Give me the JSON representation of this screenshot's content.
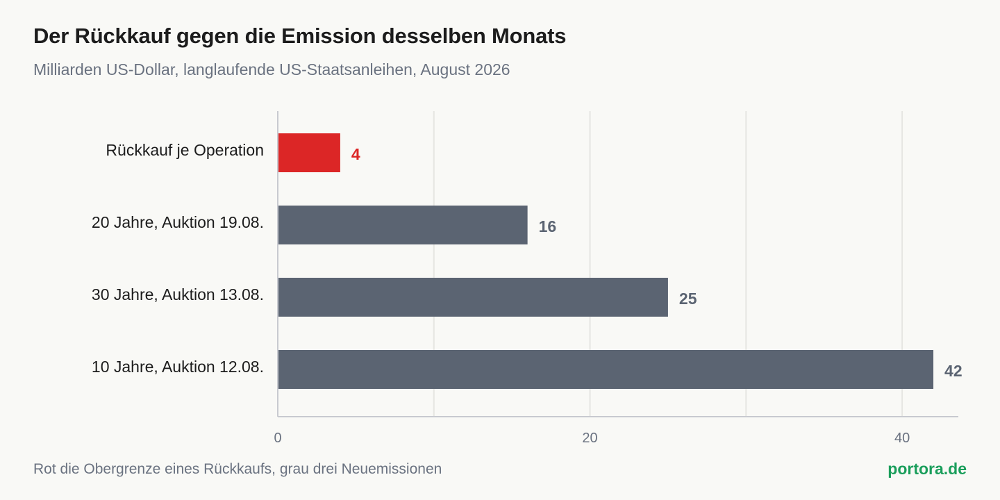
{
  "title": "Der Rückkauf gegen die Emission desselben Monats",
  "subtitle": "Milliarden US-Dollar, langlaufende US-Staatsanleihen, August 2026",
  "footnote": "Rot die Obergrenze eines Rückkaufs, grau drei Neuemissionen",
  "source": "portora.de",
  "colors": {
    "highlight": "#dc2626",
    "bar": "#5b6472",
    "grid": "#e6e6e2",
    "axis": "#c8cad0"
  },
  "chart_data": {
    "type": "bar",
    "orientation": "horizontal",
    "categories": [
      "Rückkauf je Operation",
      "20 Jahre, Auktion 19.08.",
      "30 Jahre, Auktion 13.08.",
      "10 Jahre, Auktion 12.08."
    ],
    "values": [
      4,
      16,
      25,
      42
    ],
    "value_labels": [
      "4",
      "16",
      "25",
      "42"
    ],
    "highlight_index": 0,
    "xlim": [
      0,
      43.6
    ],
    "x_ticks": [
      0,
      20,
      40
    ],
    "x_gridlines": [
      0,
      10,
      20,
      30,
      40
    ],
    "grid": true
  }
}
